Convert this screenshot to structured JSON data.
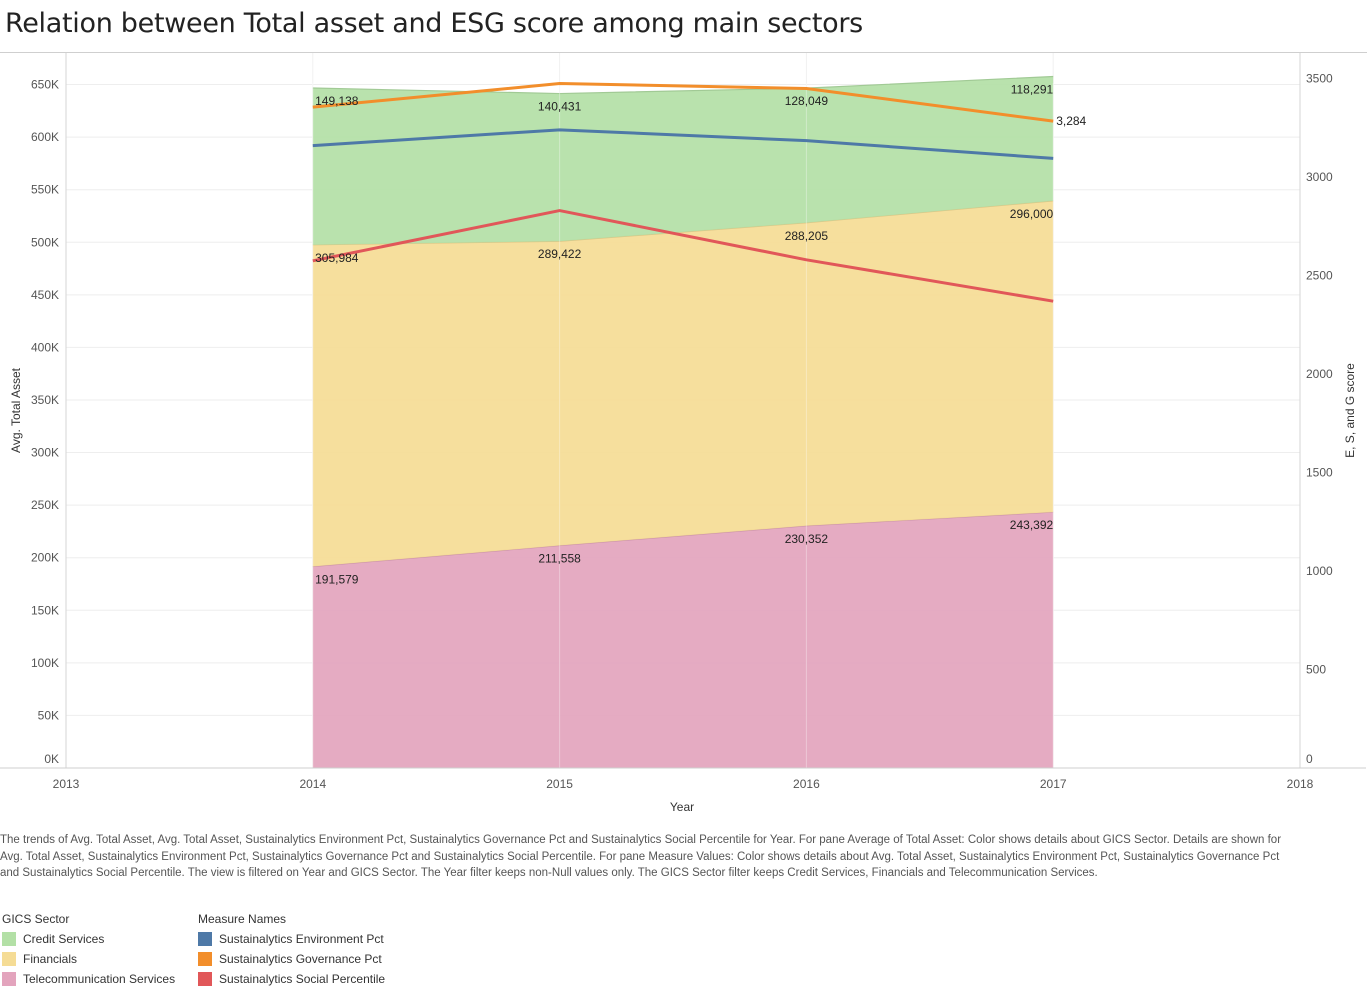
{
  "title": "Relation between Total asset and ESG score among main sectors",
  "caption": "The trends of Avg. Total Asset, Avg. Total Asset, Sustainalytics Environment Pct, Sustainalytics Governance Pct and Sustainalytics Social Percentile for Year.  For pane Average of Total Asset:  Color shows details about GICS Sector.  Details are shown for Avg. Total Asset, Sustainalytics Environment Pct, Sustainalytics Governance Pct and Sustainalytics Social Percentile.  For pane Measure Values:  Color shows details about Avg. Total Asset, Sustainalytics Environment Pct, Sustainalytics Governance Pct and Sustainalytics Social Percentile. The view is filtered on Year and GICS Sector. The Year filter keeps non-Null values only. The GICS Sector filter keeps Credit Services, Financials and Telecommunication Services.",
  "legend_sector": {
    "title": "GICS Sector",
    "items": [
      {
        "label": "Credit Services",
        "color": "#b3e0a6"
      },
      {
        "label": "Financials",
        "color": "#f5dc95"
      },
      {
        "label": "Telecommunication Services",
        "color": "#e3a4bd"
      }
    ]
  },
  "legend_measure": {
    "title": "Measure Names",
    "items": [
      {
        "label": "Sustainalytics Environment Pct",
        "color": "#4e79a7"
      },
      {
        "label": "Sustainalytics Governance Pct",
        "color": "#f28e2b"
      },
      {
        "label": "Sustainalytics Social Percentile",
        "color": "#e15759"
      }
    ]
  },
  "chart_data": {
    "type": "area",
    "xlabel": "Year",
    "ylabel": "Avg. Total Asset",
    "y2label": "E, S, and G score",
    "x": [
      2014,
      2015,
      2016,
      2017
    ],
    "xlim": [
      2013,
      2018
    ],
    "x_ticks": [
      "2013",
      "2014",
      "2015",
      "2016",
      "2017",
      "2018"
    ],
    "ylim": [
      0,
      680000
    ],
    "y_ticks": [
      {
        "value": 0,
        "label": "0K"
      },
      {
        "value": 50000,
        "label": "50K"
      },
      {
        "value": 100000,
        "label": "100K"
      },
      {
        "value": 150000,
        "label": "150K"
      },
      {
        "value": 200000,
        "label": "200K"
      },
      {
        "value": 250000,
        "label": "250K"
      },
      {
        "value": 300000,
        "label": "300K"
      },
      {
        "value": 350000,
        "label": "350K"
      },
      {
        "value": 400000,
        "label": "400K"
      },
      {
        "value": 450000,
        "label": "450K"
      },
      {
        "value": 500000,
        "label": "500K"
      },
      {
        "value": 550000,
        "label": "550K"
      },
      {
        "value": 600000,
        "label": "600K"
      },
      {
        "value": 650000,
        "label": "650K"
      }
    ],
    "y2lim": [
      0,
      3630
    ],
    "y2_ticks": [
      {
        "value": 0,
        "label": "0"
      },
      {
        "value": 500,
        "label": "500"
      },
      {
        "value": 1000,
        "label": "1000"
      },
      {
        "value": 1500,
        "label": "1500"
      },
      {
        "value": 2000,
        "label": "2000"
      },
      {
        "value": 2500,
        "label": "2500"
      },
      {
        "value": 3000,
        "label": "3000"
      },
      {
        "value": 3500,
        "label": "3500"
      }
    ],
    "grid": true,
    "stacked": true,
    "areas": [
      {
        "name": "Telecommunication Services",
        "color": "#e3a4bd",
        "values": [
          191579,
          211558,
          230352,
          243392
        ],
        "labels": [
          "191,579",
          "211,558",
          "230,352",
          "243,392"
        ]
      },
      {
        "name": "Financials",
        "color": "#f5dc95",
        "values": [
          305984,
          289422,
          288205,
          296000
        ],
        "labels": [
          "305,984",
          "289,422",
          "288,205",
          "296,000"
        ]
      },
      {
        "name": "Credit Services",
        "color": "#b3e0a6",
        "values": [
          149138,
          140431,
          128049,
          118291
        ],
        "labels": [
          "149,138",
          "140,431",
          "128,049",
          "118,291"
        ]
      }
    ],
    "lines_axis": "y2",
    "lines": [
      {
        "name": "Sustainalytics Environment Pct",
        "color": "#4e79a7",
        "values": [
          3160,
          3240,
          3185,
          3095
        ]
      },
      {
        "name": "Sustainalytics Governance Pct",
        "color": "#f28e2b",
        "values": [
          3355,
          3475,
          3450,
          3284
        ],
        "end_label": "3,284"
      },
      {
        "name": "Sustainalytics Social Percentile",
        "color": "#e15759",
        "values": [
          2575,
          2830,
          2580,
          2370
        ]
      }
    ],
    "legend": "bottom-left"
  }
}
